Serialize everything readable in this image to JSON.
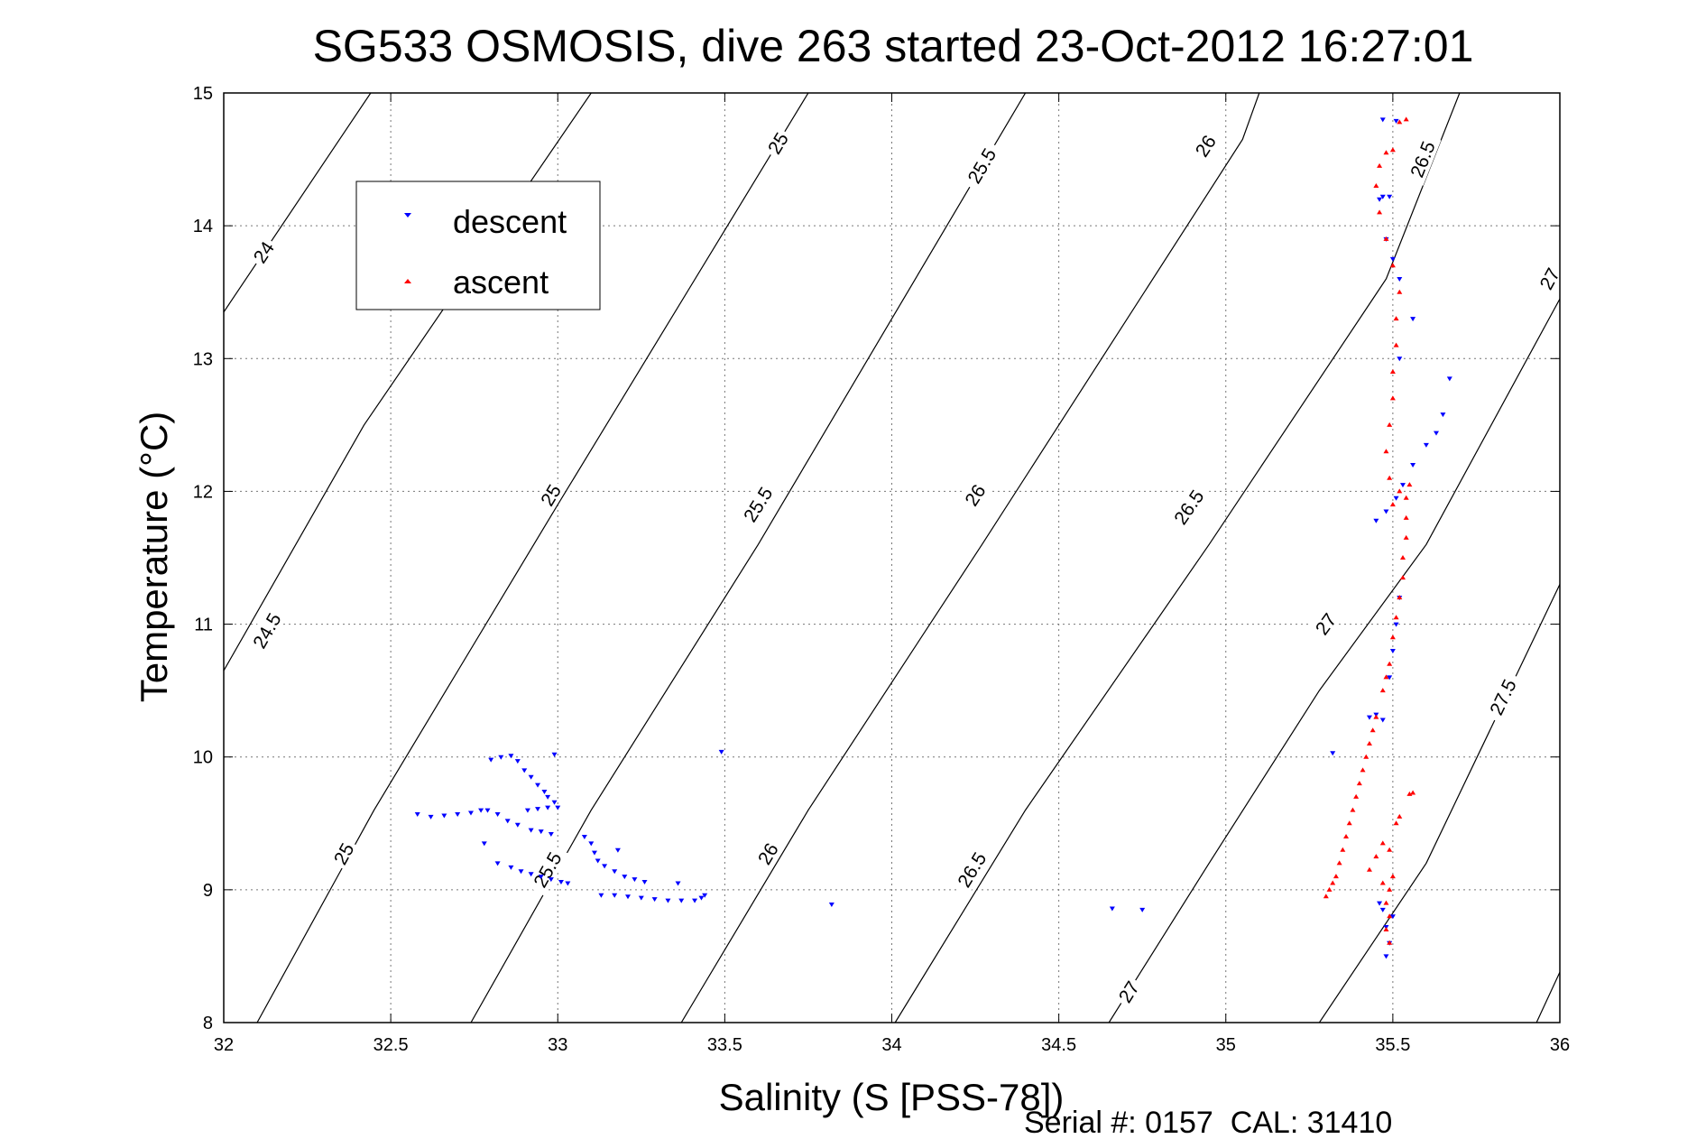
{
  "chart_data": {
    "type": "scatter",
    "title": "SG533 OSMOSIS, dive 263 started 23-Oct-2012 16:27:01",
    "xlabel": "Salinity (S [PSS-78])",
    "ylabel": "Temperature (°C)",
    "xlim": [
      32,
      36
    ],
    "ylim": [
      8,
      15
    ],
    "xticks": [
      "32",
      "32.5",
      "33",
      "33.5",
      "34",
      "34.5",
      "35",
      "35.5",
      "36"
    ],
    "yticks": [
      "8",
      "9",
      "10",
      "11",
      "12",
      "13",
      "14",
      "15"
    ],
    "grid": true,
    "legend_position": "top-left",
    "footer": "Serial #: 0157  CAL: 31410",
    "contours": [
      {
        "label": "24",
        "points": [
          [
            32.0,
            13.35
          ],
          [
            32.44,
            15.0
          ]
        ],
        "label_at": [
          32.12,
          13.8
        ]
      },
      {
        "label": "24.5",
        "points": [
          [
            32.0,
            10.65
          ],
          [
            32.42,
            12.5
          ],
          [
            33.1,
            15.0
          ]
        ],
        "label_at": [
          32.13,
          10.95
        ]
      },
      {
        "label": "25",
        "points": [
          [
            32.1,
            8.0
          ],
          [
            32.45,
            9.6
          ],
          [
            33.0,
            11.9
          ],
          [
            33.75,
            15.0
          ]
        ],
        "label_at": [
          32.36,
          9.27
        ]
      },
      {
        "label": "25",
        "points": [
          [
            32.1,
            8.0
          ],
          [
            32.45,
            9.6
          ],
          [
            33.0,
            11.9
          ],
          [
            33.75,
            15.0
          ]
        ],
        "label_at": [
          32.98,
          11.97
        ]
      },
      {
        "label": "25",
        "points": [
          [
            32.1,
            8.0
          ],
          [
            32.45,
            9.6
          ],
          [
            33.0,
            11.9
          ],
          [
            33.75,
            15.0
          ]
        ],
        "label_at": [
          33.66,
          14.62
        ]
      },
      {
        "label": "25.5",
        "points": [
          [
            32.74,
            8.0
          ],
          [
            33.1,
            9.6
          ],
          [
            33.6,
            11.6
          ],
          [
            34.4,
            15.0
          ]
        ],
        "label_at": [
          32.97,
          9.15
        ]
      },
      {
        "label": "25.5",
        "points": [
          [
            32.74,
            8.0
          ],
          [
            33.1,
            9.6
          ],
          [
            33.6,
            11.6
          ],
          [
            34.4,
            15.0
          ]
        ],
        "label_at": [
          33.6,
          11.9
        ]
      },
      {
        "label": "25.5",
        "points": [
          [
            32.74,
            8.0
          ],
          [
            33.1,
            9.6
          ],
          [
            33.6,
            11.6
          ],
          [
            34.4,
            15.0
          ]
        ],
        "label_at": [
          34.27,
          14.45
        ]
      },
      {
        "label": "26",
        "points": [
          [
            33.37,
            8.0
          ],
          [
            33.75,
            9.6
          ],
          [
            34.27,
            11.6
          ],
          [
            35.05,
            14.65
          ],
          [
            35.1,
            15.0
          ]
        ],
        "label_at": [
          33.63,
          9.27
        ]
      },
      {
        "label": "26",
        "points": [
          [
            33.37,
            8.0
          ],
          [
            33.75,
            9.6
          ],
          [
            34.27,
            11.6
          ],
          [
            35.05,
            14.65
          ],
          [
            35.1,
            15.0
          ]
        ],
        "label_at": [
          34.25,
          11.97
        ]
      },
      {
        "label": "26",
        "points": [
          [
            33.37,
            8.0
          ],
          [
            33.75,
            9.6
          ],
          [
            34.27,
            11.6
          ],
          [
            35.05,
            14.65
          ],
          [
            35.1,
            15.0
          ]
        ],
        "label_at": [
          34.94,
          14.6
        ]
      },
      {
        "label": "26.5",
        "points": [
          [
            34.01,
            8.0
          ],
          [
            34.4,
            9.6
          ],
          [
            34.95,
            11.6
          ],
          [
            35.48,
            13.6
          ],
          [
            35.7,
            15.0
          ]
        ],
        "label_at": [
          34.24,
          9.15
        ]
      },
      {
        "label": "26.5",
        "points": [
          [
            34.01,
            8.0
          ],
          [
            34.4,
            9.6
          ],
          [
            34.95,
            11.6
          ],
          [
            35.48,
            13.6
          ],
          [
            35.7,
            15.0
          ]
        ],
        "label_at": [
          34.89,
          11.88
        ]
      },
      {
        "label": "26.5",
        "points": [
          [
            34.01,
            8.0
          ],
          [
            34.4,
            9.6
          ],
          [
            34.95,
            11.6
          ],
          [
            35.48,
            13.6
          ],
          [
            35.7,
            15.0
          ]
        ],
        "label_at": [
          35.59,
          14.5
        ]
      },
      {
        "label": "27",
        "points": [
          [
            34.65,
            8.0
          ],
          [
            34.95,
            9.2
          ],
          [
            35.28,
            10.5
          ],
          [
            35.6,
            11.6
          ],
          [
            36.0,
            13.45
          ]
        ],
        "label_at": [
          34.71,
          8.23
        ]
      },
      {
        "label": "27",
        "points": [
          [
            34.65,
            8.0
          ],
          [
            34.95,
            9.2
          ],
          [
            35.28,
            10.5
          ],
          [
            35.6,
            11.6
          ],
          [
            36.0,
            13.45
          ]
        ],
        "label_at": [
          35.3,
          11.0
        ]
      },
      {
        "label": "27",
        "points": [
          [
            34.65,
            8.0
          ],
          [
            34.95,
            9.2
          ],
          [
            35.28,
            10.5
          ],
          [
            35.6,
            11.6
          ],
          [
            36.0,
            13.45
          ]
        ],
        "label_at": [
          35.97,
          13.6
        ]
      },
      {
        "label": "27.5",
        "points": [
          [
            35.28,
            8.0
          ],
          [
            35.6,
            9.2
          ],
          [
            36.0,
            11.3
          ]
        ],
        "label_at": [
          35.83,
          10.45
        ]
      },
      {
        "label": "",
        "points": [
          [
            35.93,
            8.0
          ],
          [
            36.0,
            8.38
          ]
        ],
        "label_at": null
      }
    ],
    "series": [
      {
        "name": "descent",
        "color": "#0000ff",
        "marker": "triangle-down",
        "points": [
          [
            32.58,
            9.57
          ],
          [
            32.62,
            9.55
          ],
          [
            32.66,
            9.56
          ],
          [
            32.7,
            9.57
          ],
          [
            32.74,
            9.58
          ],
          [
            32.77,
            9.6
          ],
          [
            32.79,
            9.6
          ],
          [
            32.82,
            9.57
          ],
          [
            32.85,
            9.52
          ],
          [
            32.88,
            9.49
          ],
          [
            32.92,
            9.45
          ],
          [
            32.95,
            9.44
          ],
          [
            32.98,
            9.42
          ],
          [
            32.8,
            9.98
          ],
          [
            32.83,
            10.0
          ],
          [
            32.86,
            10.01
          ],
          [
            32.88,
            9.97
          ],
          [
            32.9,
            9.9
          ],
          [
            32.92,
            9.85
          ],
          [
            32.94,
            9.79
          ],
          [
            32.96,
            9.74
          ],
          [
            32.97,
            9.7
          ],
          [
            32.99,
            9.66
          ],
          [
            33.0,
            9.62
          ],
          [
            32.97,
            9.62
          ],
          [
            32.94,
            9.61
          ],
          [
            32.91,
            9.6
          ],
          [
            32.99,
            10.02
          ],
          [
            32.78,
            9.35
          ],
          [
            32.82,
            9.2
          ],
          [
            32.86,
            9.17
          ],
          [
            32.89,
            9.14
          ],
          [
            32.92,
            9.12
          ],
          [
            32.95,
            9.1
          ],
          [
            32.98,
            9.08
          ],
          [
            33.01,
            9.06
          ],
          [
            33.03,
            9.05
          ],
          [
            33.08,
            9.4
          ],
          [
            33.1,
            9.35
          ],
          [
            33.11,
            9.28
          ],
          [
            33.12,
            9.22
          ],
          [
            33.14,
            9.18
          ],
          [
            33.17,
            9.14
          ],
          [
            33.2,
            9.1
          ],
          [
            33.23,
            9.08
          ],
          [
            33.26,
            9.06
          ],
          [
            33.18,
            9.3
          ],
          [
            33.13,
            8.96
          ],
          [
            33.17,
            8.96
          ],
          [
            33.21,
            8.95
          ],
          [
            33.25,
            8.94
          ],
          [
            33.29,
            8.93
          ],
          [
            33.33,
            8.92
          ],
          [
            33.37,
            8.92
          ],
          [
            33.41,
            8.92
          ],
          [
            33.43,
            8.94
          ],
          [
            33.44,
            8.96
          ],
          [
            33.36,
            9.05
          ],
          [
            33.49,
            10.04
          ],
          [
            33.82,
            8.89
          ],
          [
            34.66,
            8.86
          ],
          [
            34.75,
            8.85
          ],
          [
            35.32,
            10.03
          ],
          [
            35.46,
            8.9
          ],
          [
            35.47,
            8.85
          ],
          [
            35.48,
            8.72
          ],
          [
            35.49,
            8.6
          ],
          [
            35.48,
            8.5
          ],
          [
            35.5,
            8.8
          ],
          [
            35.43,
            10.3
          ],
          [
            35.45,
            10.32
          ],
          [
            35.47,
            10.28
          ],
          [
            35.49,
            10.6
          ],
          [
            35.5,
            10.8
          ],
          [
            35.51,
            11.0
          ],
          [
            35.52,
            11.2
          ],
          [
            35.45,
            11.78
          ],
          [
            35.48,
            11.85
          ],
          [
            35.51,
            11.95
          ],
          [
            35.53,
            12.05
          ],
          [
            35.56,
            12.2
          ],
          [
            35.6,
            12.35
          ],
          [
            35.63,
            12.44
          ],
          [
            35.65,
            12.58
          ],
          [
            35.67,
            12.85
          ],
          [
            35.52,
            13.0
          ],
          [
            35.56,
            13.3
          ],
          [
            35.46,
            14.2
          ],
          [
            35.47,
            14.22
          ],
          [
            35.49,
            14.22
          ],
          [
            35.48,
            13.9
          ],
          [
            35.5,
            13.75
          ],
          [
            35.52,
            13.6
          ],
          [
            35.47,
            14.8
          ],
          [
            35.51,
            14.79
          ]
        ]
      },
      {
        "name": "ascent",
        "color": "#ff0000",
        "marker": "triangle-up",
        "points": [
          [
            35.3,
            8.95
          ],
          [
            35.31,
            9.0
          ],
          [
            35.32,
            9.05
          ],
          [
            35.33,
            9.1
          ],
          [
            35.34,
            9.2
          ],
          [
            35.35,
            9.3
          ],
          [
            35.36,
            9.4
          ],
          [
            35.37,
            9.5
          ],
          [
            35.38,
            9.6
          ],
          [
            35.39,
            9.7
          ],
          [
            35.4,
            9.8
          ],
          [
            35.41,
            9.9
          ],
          [
            35.42,
            10.0
          ],
          [
            35.43,
            10.1
          ],
          [
            35.44,
            10.2
          ],
          [
            35.45,
            10.3
          ],
          [
            35.43,
            9.15
          ],
          [
            35.45,
            9.25
          ],
          [
            35.47,
            9.35
          ],
          [
            35.49,
            9.3
          ],
          [
            35.51,
            9.5
          ],
          [
            35.52,
            9.55
          ],
          [
            35.55,
            9.72
          ],
          [
            35.56,
            9.73
          ],
          [
            35.47,
            9.05
          ],
          [
            35.49,
            9.0
          ],
          [
            35.5,
            9.1
          ],
          [
            35.48,
            8.9
          ],
          [
            35.49,
            8.8
          ],
          [
            35.48,
            8.7
          ],
          [
            35.49,
            8.6
          ],
          [
            35.47,
            10.5
          ],
          [
            35.48,
            10.6
          ],
          [
            35.49,
            10.7
          ],
          [
            35.5,
            10.9
          ],
          [
            35.51,
            11.05
          ],
          [
            35.52,
            11.2
          ],
          [
            35.53,
            11.35
          ],
          [
            35.53,
            11.5
          ],
          [
            35.54,
            11.65
          ],
          [
            35.54,
            11.8
          ],
          [
            35.54,
            11.95
          ],
          [
            35.55,
            12.05
          ],
          [
            35.52,
            12.0
          ],
          [
            35.5,
            11.9
          ],
          [
            35.49,
            12.1
          ],
          [
            35.48,
            12.3
          ],
          [
            35.49,
            12.5
          ],
          [
            35.5,
            12.7
          ],
          [
            35.5,
            12.9
          ],
          [
            35.51,
            13.1
          ],
          [
            35.51,
            13.3
          ],
          [
            35.52,
            13.5
          ],
          [
            35.5,
            13.7
          ],
          [
            35.48,
            13.9
          ],
          [
            35.46,
            14.1
          ],
          [
            35.45,
            14.3
          ],
          [
            35.46,
            14.45
          ],
          [
            35.48,
            14.55
          ],
          [
            35.5,
            14.57
          ],
          [
            35.52,
            14.78
          ],
          [
            35.54,
            14.8
          ]
        ]
      }
    ]
  }
}
